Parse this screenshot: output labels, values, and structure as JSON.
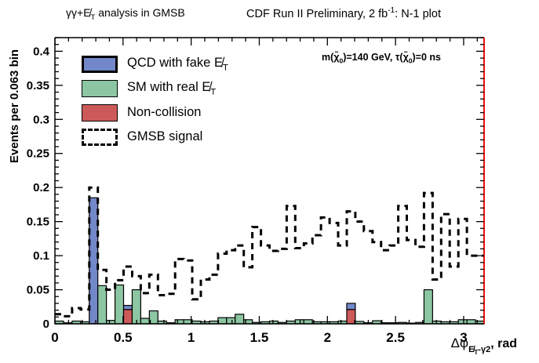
{
  "titles": {
    "left": {
      "pre": "γγ+",
      "met": "E̸",
      "met_sub": "T",
      "post": " analysis in GMSB"
    },
    "right": {
      "pre": "CDF Run II Preliminary, 2 fb",
      "sup": "-1",
      "post": ": N-1 plot"
    }
  },
  "annotation": {
    "p1": "m(",
    "chi1": "χ̃",
    "s1": "0",
    "p2": ")=140 GeV, ",
    "p3": "τ(",
    "chi2": "χ̃",
    "s2": "0",
    "p4": ")=0 ns"
  },
  "legend": [
    {
      "label_pre": "QCD with fake ",
      "met": "E̸",
      "met_sub": "T"
    },
    {
      "label_pre": "SM with real ",
      "met": "E̸",
      "met_sub": "T"
    },
    {
      "label_pre": "Non-collision"
    },
    {
      "label_pre": "GMSB signal"
    }
  ],
  "axes": {
    "y_label": "Events per 0.063 bin",
    "x_label": {
      "main": "Δφ",
      "sub_met": "E̸",
      "sub_met_sub": "T",
      "sub_rest": "-γ2",
      "post": ", rad"
    }
  },
  "colors": {
    "qcd_blue": "#7288c8",
    "sm_green": "#8cc6a2",
    "noncollision_red": "#cd5a5a",
    "gmsb_dash": "#000000",
    "frame": "#000000",
    "right_frame_red": "#e8100c"
  },
  "chart_data": {
    "type": "bar",
    "subtype": "stacked-histogram-with-dashed-overlay",
    "title": "CDF Run II Preliminary, 2 fb-1: N-1 plot",
    "xlabel": "Δφ(MET-γ2), rad",
    "ylabel": "Events per 0.063 bin",
    "bin_width": 0.063,
    "n_bins": 50,
    "xlim": [
      0,
      3.15
    ],
    "ylim": [
      0,
      0.42
    ],
    "x_tick_values": [
      0,
      0.5,
      1,
      1.5,
      2,
      2.5,
      3
    ],
    "x_tick_labels": [
      "0",
      "0.5",
      "1",
      "1.5",
      "2",
      "2.5",
      "3"
    ],
    "x_minor_step": 0.1,
    "y_tick_values": [
      0,
      0.05,
      0.1,
      0.15,
      0.2,
      0.25,
      0.3,
      0.35,
      0.4
    ],
    "y_tick_labels": [
      "0",
      "0.05",
      "0.1",
      "0.15",
      "0.2",
      "0.25",
      "0.3",
      "0.35",
      "0.4"
    ],
    "y_minor_step": 0.01,
    "grid": false,
    "legend_position": "top-left-inside",
    "series": [
      {
        "name": "Non-collision",
        "role": "stack-bottom",
        "color": "#cd5a5a",
        "values": [
          0,
          0,
          0,
          0,
          0,
          0,
          0,
          0,
          0.021,
          0,
          0,
          0,
          0,
          0,
          0,
          0,
          0,
          0,
          0,
          0,
          0,
          0,
          0,
          0,
          0,
          0,
          0,
          0,
          0,
          0,
          0,
          0,
          0,
          0,
          0.021,
          0,
          0,
          0,
          0,
          0,
          0,
          0,
          0,
          0,
          0,
          0,
          0,
          0,
          0,
          0
        ]
      },
      {
        "name": "QCD with fake MET",
        "role": "stack-middle",
        "color": "#7288c8",
        "values": [
          0,
          0,
          0,
          0,
          0.185,
          0,
          0,
          0,
          0.006,
          0,
          0,
          0,
          0,
          0,
          0,
          0,
          0,
          0,
          0,
          0,
          0,
          0,
          0,
          0,
          0,
          0,
          0,
          0,
          0,
          0,
          0,
          0,
          0,
          0,
          0.009,
          0,
          0,
          0,
          0,
          0,
          0,
          0,
          0,
          0,
          0,
          0,
          0,
          0,
          0,
          0
        ]
      },
      {
        "name": "SM with real MET",
        "role": "stack-top",
        "color": "#8cc6a2",
        "values": [
          0.004,
          0.0015,
          0.004,
          0.003,
          0,
          0.056,
          0.005,
          0.057,
          0,
          0.05,
          0.008,
          0.019,
          0.004,
          0.0015,
          0.006,
          0.006,
          0.004,
          0.003,
          0.004,
          0.009,
          0.009,
          0.014,
          0.006,
          0.002,
          0.003,
          0.004,
          0.002,
          0.004,
          0.006,
          0.006,
          0.003,
          0.003,
          0.003,
          0.004,
          0,
          0.0035,
          0.0015,
          0.0045,
          0.0015,
          0.0015,
          0.002,
          0.001,
          0.002,
          0.05,
          0.004,
          0.003,
          0.003,
          0.006,
          0.006,
          0.004
        ]
      },
      {
        "name": "GMSB signal",
        "role": "dashed-outline",
        "color": "#000000",
        "values": [
          0.014,
          0.011,
          0.023,
          0.021,
          0.2,
          0.079,
          0.05,
          0.064,
          0.084,
          0.07,
          0.045,
          0.072,
          0.042,
          0.044,
          0.095,
          0.093,
          0.036,
          0.065,
          0.072,
          0.103,
          0.108,
          0.115,
          0.083,
          0.142,
          0.115,
          0.107,
          0.11,
          0.173,
          0.111,
          0.118,
          0.13,
          0.156,
          0.148,
          0.115,
          0.165,
          0.15,
          0.136,
          0.12,
          0.108,
          0.115,
          0.173,
          0.123,
          0.113,
          0.192,
          0.065,
          0.161,
          0.084,
          0.154,
          0.1,
          0.1
        ]
      }
    ]
  }
}
